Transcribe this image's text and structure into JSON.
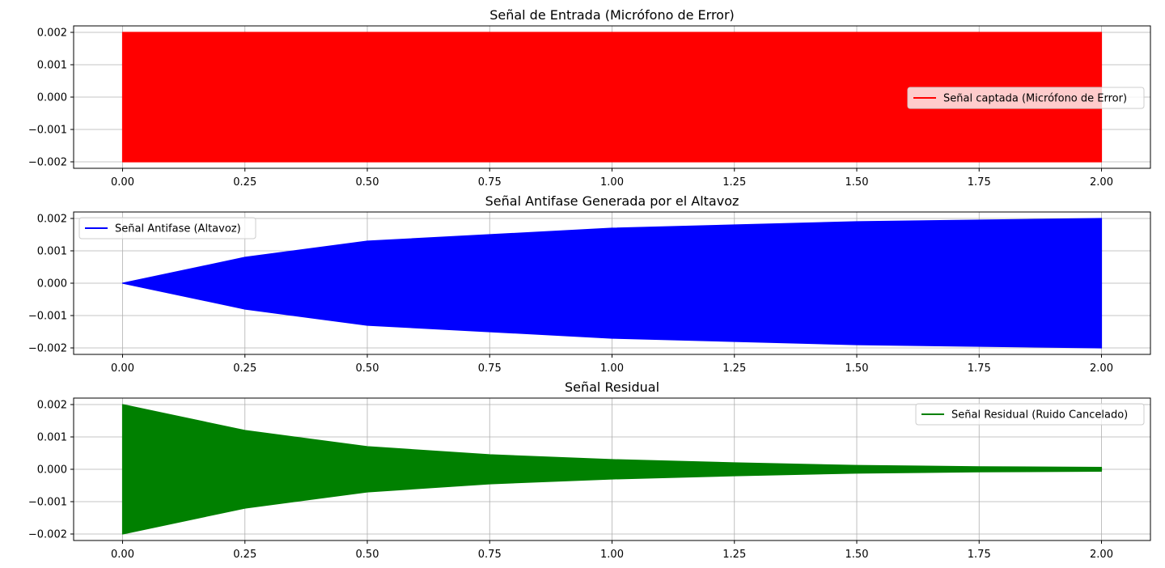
{
  "chart_data": [
    {
      "type": "line",
      "title": "Señal de Entrada (Micrófono de Error)",
      "xlabel": "",
      "ylabel": "",
      "xlim": [
        -0.1,
        2.1
      ],
      "ylim": [
        -0.0022,
        0.0022
      ],
      "xticks": [
        0.0,
        0.25,
        0.5,
        0.75,
        1.0,
        1.25,
        1.5,
        1.75,
        2.0
      ],
      "xtick_labels": [
        "0.00",
        "0.25",
        "0.50",
        "0.75",
        "1.00",
        "1.25",
        "1.50",
        "1.75",
        "2.00"
      ],
      "yticks": [
        -0.002,
        -0.001,
        0.0,
        0.001,
        0.002
      ],
      "ytick_labels": [
        "−0.002",
        "−0.001",
        "0.000",
        "0.001",
        "0.002"
      ],
      "grid": true,
      "legend_position": "center-right",
      "series": [
        {
          "name": "Señal captada (Micrófono de Error)",
          "color": "#ff0000",
          "envelope_x": [
            0.0,
            0.25,
            0.5,
            0.75,
            1.0,
            1.25,
            1.5,
            1.75,
            2.0
          ],
          "envelope_upper": [
            0.002,
            0.002,
            0.002,
            0.002,
            0.002,
            0.002,
            0.002,
            0.002,
            0.002
          ],
          "envelope_lower": [
            -0.002,
            -0.002,
            -0.002,
            -0.002,
            -0.002,
            -0.002,
            -0.002,
            -0.002,
            -0.002
          ]
        }
      ]
    },
    {
      "type": "line",
      "title": "Señal Antifase Generada por el Altavoz",
      "xlabel": "",
      "ylabel": "",
      "xlim": [
        -0.1,
        2.1
      ],
      "ylim": [
        -0.0022,
        0.0022
      ],
      "xticks": [
        0.0,
        0.25,
        0.5,
        0.75,
        1.0,
        1.25,
        1.5,
        1.75,
        2.0
      ],
      "xtick_labels": [
        "0.00",
        "0.25",
        "0.50",
        "0.75",
        "1.00",
        "1.25",
        "1.50",
        "1.75",
        "2.00"
      ],
      "yticks": [
        -0.002,
        -0.001,
        0.0,
        0.001,
        0.002
      ],
      "ytick_labels": [
        "−0.002",
        "−0.001",
        "0.000",
        "0.001",
        "0.002"
      ],
      "grid": true,
      "legend_position": "upper-left",
      "series": [
        {
          "name": "Señal Antifase (Altavoz)",
          "color": "#0000ff",
          "envelope_x": [
            0.0,
            0.25,
            0.5,
            0.75,
            1.0,
            1.25,
            1.5,
            1.75,
            2.0
          ],
          "envelope_upper": [
            0.0,
            0.0008,
            0.0013,
            0.0015,
            0.0017,
            0.0018,
            0.0019,
            0.00195,
            0.002
          ],
          "envelope_lower": [
            0.0,
            -0.0008,
            -0.0013,
            -0.0015,
            -0.0017,
            -0.0018,
            -0.0019,
            -0.00195,
            -0.002
          ]
        }
      ]
    },
    {
      "type": "line",
      "title": "Señal Residual",
      "xlabel": "",
      "ylabel": "",
      "xlim": [
        -0.1,
        2.1
      ],
      "ylim": [
        -0.0022,
        0.0022
      ],
      "xticks": [
        0.0,
        0.25,
        0.5,
        0.75,
        1.0,
        1.25,
        1.5,
        1.75,
        2.0
      ],
      "xtick_labels": [
        "0.00",
        "0.25",
        "0.50",
        "0.75",
        "1.00",
        "1.25",
        "1.50",
        "1.75",
        "2.00"
      ],
      "yticks": [
        -0.002,
        -0.001,
        0.0,
        0.001,
        0.002
      ],
      "ytick_labels": [
        "−0.002",
        "−0.001",
        "0.000",
        "0.001",
        "0.002"
      ],
      "grid": true,
      "legend_position": "upper-right",
      "series": [
        {
          "name": "Señal Residual (Ruido Cancelado)",
          "color": "#008000",
          "envelope_x": [
            0.0,
            0.25,
            0.5,
            0.75,
            1.0,
            1.25,
            1.5,
            1.75,
            2.0
          ],
          "envelope_upper": [
            0.002,
            0.0012,
            0.0007,
            0.00045,
            0.0003,
            0.0002,
            0.00012,
            8e-05,
            6e-05
          ],
          "envelope_lower": [
            -0.002,
            -0.0012,
            -0.0007,
            -0.00045,
            -0.0003,
            -0.0002,
            -0.00012,
            -8e-05,
            -6e-05
          ]
        }
      ]
    }
  ]
}
